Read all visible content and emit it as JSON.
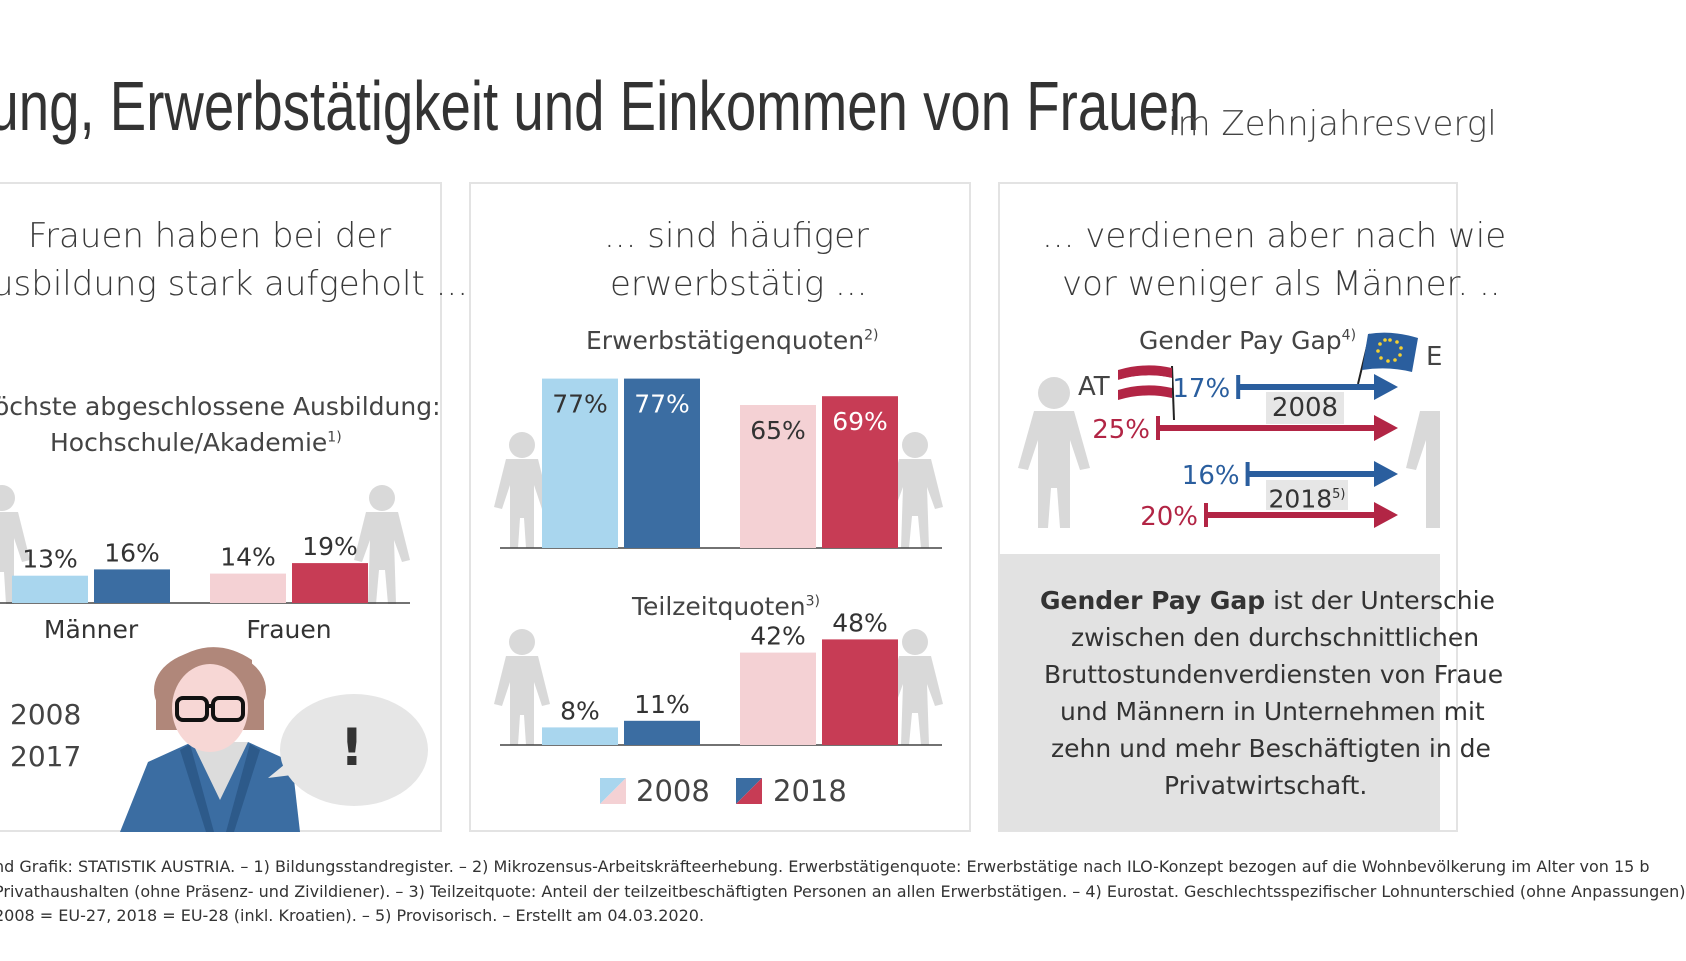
{
  "header": {
    "title": "dung, Erwerbstätigkeit und Einkommen von Frauen",
    "subtitle": "im Zehnjahresvergl"
  },
  "panel1": {
    "heading_line1": "Frauen haben bei der",
    "heading_line2": "usbildung stark aufgeholt ...",
    "subtitle_line1": "öchste abgeschlossene Ausbildung:",
    "subtitle_line2": "Hochschule/Akademie",
    "subtitle_sup": "1)",
    "legend_2008": "2008",
    "legend_2017": "2017",
    "exclamation": "!"
  },
  "panel2": {
    "heading_line1": "... sind häufiger",
    "heading_line2": "erwerbstätig ...",
    "legend_2008": "2008",
    "legend_2018": "2018"
  },
  "panel3": {
    "heading_line1": "... verdienen aber nach wie",
    "heading_line2": "vor weniger als Männer. ..",
    "gpg_title": "Gender Pay Gap",
    "gpg_sup": "4)",
    "at_label": "AT",
    "eu_label": "E",
    "year_2008": "2008",
    "year_2018": "2018",
    "year_2018_sup": "5)",
    "info_bold": "Gender Pay Gap",
    "info_line1": " ist der Unterschie",
    "info_line2": "zwischen den durchschnittlichen",
    "info_line3": "Bruttostundenverdiensten von Fraue",
    "info_line4": "und Männern in Unternehmen mit",
    "info_line5": "zehn und mehr Beschäftigten in de",
    "info_line6": "Privatwirtschaft."
  },
  "footnotes": {
    "line1": "nd Grafik: STATISTIK AUSTRIA. – 1) Bildungsstandregister. – 2) Mikrozensus-Arbeitskräfteerhebung. Erwerbstätigenquote: Erwerbstätige nach ILO-Konzept bezogen auf die Wohnbevölkerung im Alter von 15 b",
    "line2": " Privathaushalten (ohne Präsenz- und Zivildiener). – 3) Teilzeitquote: Anteil der teilzeitbeschäftigten Personen an allen Erwerbstätigen. – 4) Eurostat. Geschlechtsspezifischer Lohnunterschied (ohne Anpassungen)",
    "line3": "2008 = EU-27, 2018 = EU-28 (inkl. Kroatien). – 5) Provisorisch. – Erstellt am 04.03.2020."
  },
  "colors": {
    "male_2008": "#a9d6ee",
    "male_2018": "#3b6da2",
    "female_2008": "#f4d1d4",
    "female_2018": "#c73c55",
    "figure": "#d9d9d9",
    "eu_blue": "#2a5e9e",
    "at_red": "#b22545"
  },
  "chart_data": [
    {
      "type": "bar",
      "title": "Höchste abgeschlossene Ausbildung: Hochschule/Akademie",
      "categories": [
        "Männer",
        "Frauen"
      ],
      "series": [
        {
          "name": "2008",
          "values": [
            13,
            14
          ],
          "labels": [
            "13%",
            "14%"
          ]
        },
        {
          "name": "2017",
          "values": [
            16,
            19
          ],
          "labels": [
            "16%",
            "19%"
          ]
        }
      ],
      "ylim": [
        0,
        100
      ]
    },
    {
      "type": "bar",
      "title": "Erwerbstätigenquoten",
      "title_sup": "2)",
      "categories": [
        "Männer",
        "Frauen"
      ],
      "series": [
        {
          "name": "2008",
          "values": [
            77,
            65
          ],
          "labels": [
            "77%",
            "65%"
          ]
        },
        {
          "name": "2018",
          "values": [
            77,
            69
          ],
          "labels": [
            "77%",
            "69%"
          ]
        }
      ],
      "ylim": [
        0,
        100
      ]
    },
    {
      "type": "bar",
      "title": "Teilzeitquoten",
      "title_sup": "3)",
      "categories": [
        "Männer",
        "Frauen"
      ],
      "series": [
        {
          "name": "2008",
          "values": [
            8,
            42
          ],
          "labels": [
            "8%",
            "42%"
          ]
        },
        {
          "name": "2018",
          "values": [
            11,
            48
          ],
          "labels": [
            "11%",
            "48%"
          ]
        }
      ],
      "ylim": [
        0,
        100
      ]
    },
    {
      "type": "bar",
      "title": "Gender Pay Gap",
      "categories": [
        "2008",
        "2018"
      ],
      "series": [
        {
          "name": "EU",
          "values": [
            17,
            16
          ],
          "labels": [
            "17%",
            "16%"
          ]
        },
        {
          "name": "AT",
          "values": [
            25,
            20
          ],
          "labels": [
            "25%",
            "20%"
          ]
        }
      ],
      "xlim": [
        0,
        30
      ]
    }
  ]
}
